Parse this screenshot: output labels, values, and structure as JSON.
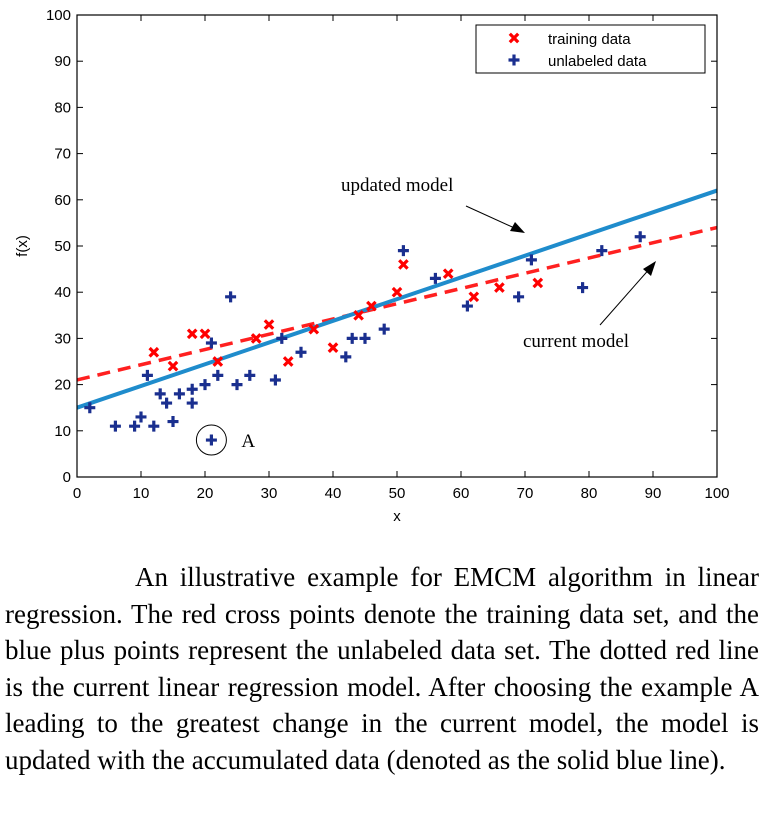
{
  "chart_data": {
    "type": "scatter",
    "xlabel": "x",
    "ylabel": "f(x)",
    "xlim": [
      0,
      100
    ],
    "ylim": [
      0,
      100
    ],
    "xticks": [
      0,
      10,
      20,
      30,
      40,
      50,
      60,
      70,
      80,
      90,
      100
    ],
    "yticks": [
      0,
      10,
      20,
      30,
      40,
      50,
      60,
      70,
      80,
      90,
      100
    ],
    "grid": false,
    "legend_position": "top-right",
    "series": [
      {
        "name": "training data",
        "marker": "x",
        "color": "#ff0000",
        "points": [
          [
            12,
            27
          ],
          [
            15,
            24
          ],
          [
            18,
            31
          ],
          [
            20,
            31
          ],
          [
            22,
            25
          ],
          [
            28,
            30
          ],
          [
            30,
            33
          ],
          [
            33,
            25
          ],
          [
            37,
            32
          ],
          [
            40,
            28
          ],
          [
            44,
            35
          ],
          [
            46,
            37
          ],
          [
            50,
            40
          ],
          [
            51,
            46
          ],
          [
            58,
            44
          ],
          [
            62,
            39
          ],
          [
            66,
            41
          ],
          [
            72,
            42
          ]
        ]
      },
      {
        "name": "unlabeled data",
        "marker": "+",
        "color": "#1a2f8f",
        "points": [
          [
            2,
            15
          ],
          [
            6,
            11
          ],
          [
            9,
            11
          ],
          [
            10,
            13
          ],
          [
            12,
            11
          ],
          [
            11,
            22
          ],
          [
            13,
            18
          ],
          [
            14,
            16
          ],
          [
            15,
            12
          ],
          [
            16,
            18
          ],
          [
            18,
            19
          ],
          [
            18,
            16
          ],
          [
            20,
            20
          ],
          [
            21,
            29
          ],
          [
            22,
            22
          ],
          [
            21,
            8
          ],
          [
            24,
            39
          ],
          [
            25,
            20
          ],
          [
            27,
            22
          ],
          [
            31,
            21
          ],
          [
            32,
            30
          ],
          [
            35,
            27
          ],
          [
            42,
            26
          ],
          [
            43,
            30
          ],
          [
            45,
            30
          ],
          [
            48,
            32
          ],
          [
            51,
            49
          ],
          [
            56,
            43
          ],
          [
            61,
            37
          ],
          [
            69,
            39
          ],
          [
            71,
            47
          ],
          [
            79,
            41
          ],
          [
            82,
            49
          ],
          [
            88,
            52
          ]
        ]
      }
    ],
    "lines": [
      {
        "label": "current model",
        "style": "dashed",
        "color": "#ff2020",
        "x": [
          0,
          100
        ],
        "y": [
          21,
          54
        ]
      },
      {
        "label": "updated model",
        "style": "solid",
        "color": "#1f8ccc",
        "x": [
          0,
          100
        ],
        "y": [
          15,
          62
        ]
      }
    ],
    "highlight": {
      "label": "A",
      "point": [
        21,
        8
      ]
    }
  },
  "caption": "An illustrative example for EMCM algorithm in linear regression. The red cross points denote the training data set, and the blue plus points represent the unlabeled data set. The dotted red line is the current linear regression model. After choosing the example A leading to the greatest change in the current model, the model is updated with the accumulated data (denoted as the solid blue line)."
}
